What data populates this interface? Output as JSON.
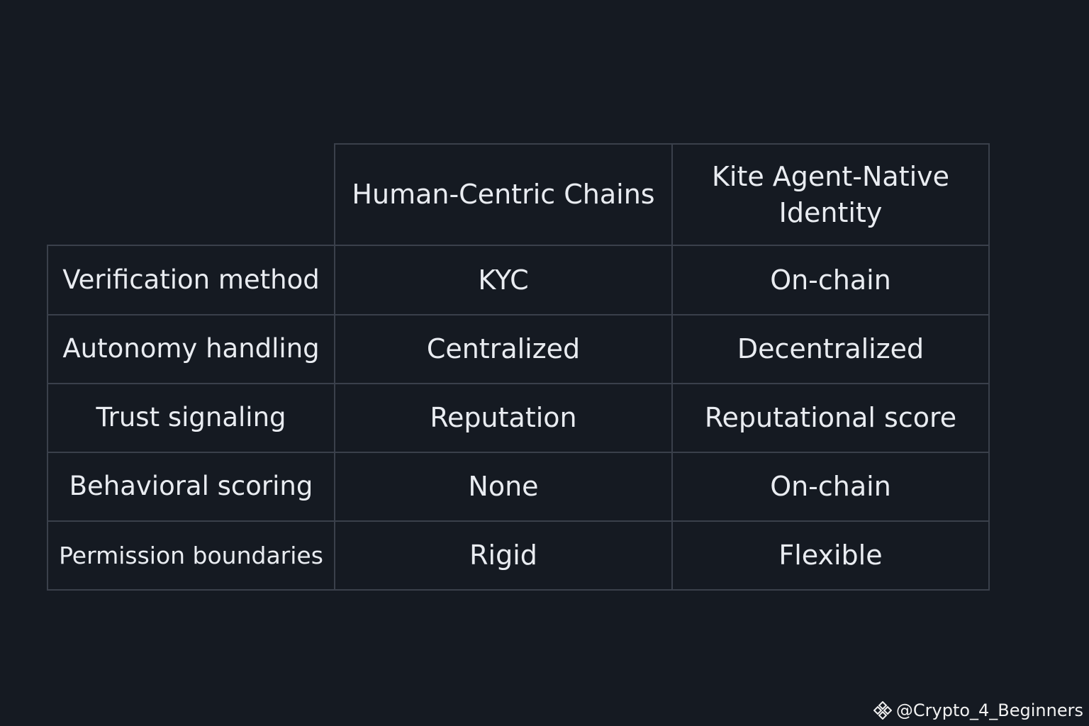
{
  "table": {
    "columns": [
      "",
      "Human-Centric Chains",
      "Kite Agent-Native Identity"
    ],
    "rows": [
      [
        "Verification method",
        "KYC",
        "On-chain"
      ],
      [
        "Autonomy handling",
        "Centralized",
        "Decentralized"
      ],
      [
        "Trust signaling",
        "Reputation",
        "Reputational score"
      ],
      [
        "Behavioral scoring",
        "None",
        "On-chain"
      ],
      [
        "Permission boundaries",
        "Rigid",
        "Flexible"
      ]
    ]
  },
  "watermark": {
    "text": "@Crypto_4_Beginners",
    "logo_icon": "binance-diamond-icon"
  },
  "colors": {
    "background": "#151a22",
    "border": "#3a404b",
    "text": "#e9ecf1"
  }
}
